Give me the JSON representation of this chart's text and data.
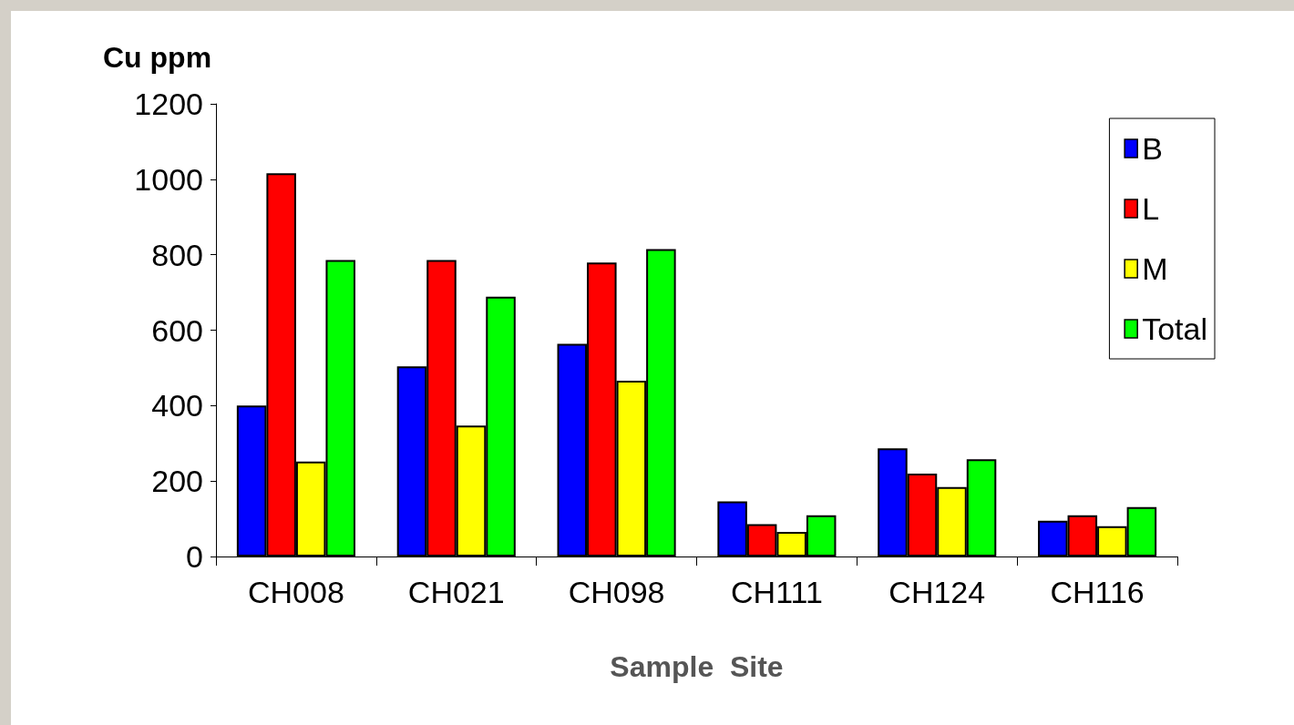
{
  "chart_data": {
    "type": "bar",
    "ylabel": "Cu ppm",
    "xlabel": "Sample  Site",
    "categories": [
      "CH008",
      "CH021",
      "CH098",
      "CH111",
      "CH124",
      "CH116"
    ],
    "series": [
      {
        "name": "B",
        "color": "#0000ff",
        "values": [
          400,
          504,
          564,
          146,
          287,
          95
        ]
      },
      {
        "name": "L",
        "color": "#ff0000",
        "values": [
          1016,
          786,
          779,
          86,
          220,
          109
        ]
      },
      {
        "name": "M",
        "color": "#ffff00",
        "values": [
          252,
          347,
          466,
          65,
          184,
          80
        ]
      },
      {
        "name": "Total",
        "color": "#00ff00",
        "values": [
          786,
          689,
          815,
          109,
          258,
          131
        ]
      }
    ],
    "ylim": [
      0,
      1200
    ],
    "yticks": [
      0,
      200,
      400,
      600,
      800,
      1000,
      1200
    ],
    "grid": false,
    "legend": "top right"
  }
}
